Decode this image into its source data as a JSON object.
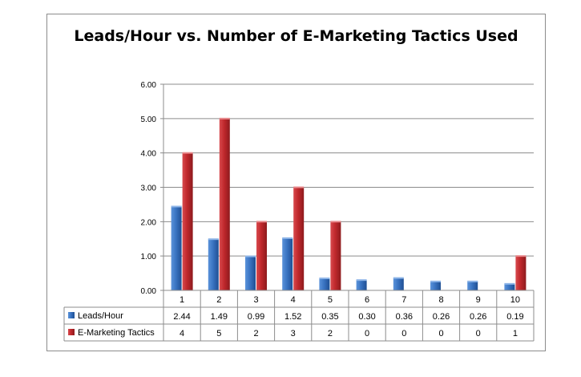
{
  "chart_data": {
    "type": "bar",
    "title": "Leads/Hour vs. Number of E-Marketing Tactics Used",
    "categories": [
      "1",
      "2",
      "3",
      "4",
      "5",
      "6",
      "7",
      "8",
      "9",
      "10"
    ],
    "series": [
      {
        "name": "Leads/Hour",
        "color": "#3a74c2",
        "values": [
          2.44,
          1.49,
          0.99,
          1.52,
          0.35,
          0.3,
          0.36,
          0.26,
          0.26,
          0.19
        ],
        "labels": [
          "2.44",
          "1.49",
          "0.99",
          "1.52",
          "0.35",
          "0.30",
          "0.36",
          "0.26",
          "0.26",
          "0.19"
        ]
      },
      {
        "name": "E-Marketing Tactics",
        "color": "#c0282c",
        "values": [
          4,
          5,
          2,
          3,
          2,
          0,
          0,
          0,
          0,
          1
        ],
        "labels": [
          "4",
          "5",
          "2",
          "3",
          "2",
          "0",
          "0",
          "0",
          "0",
          "1"
        ]
      }
    ],
    "ylim": [
      0,
      6
    ],
    "y_ticks": [
      "0.00",
      "1.00",
      "2.00",
      "3.00",
      "4.00",
      "5.00",
      "6.00"
    ],
    "grid": true,
    "legend": "data-table"
  }
}
